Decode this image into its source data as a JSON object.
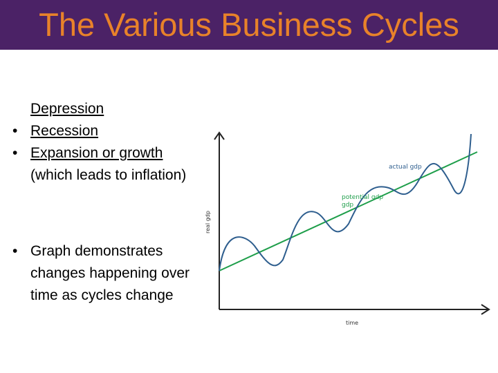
{
  "slide": {
    "title": "The Various Business Cycles",
    "bullets": [
      {
        "text": "Depression",
        "bullet": ""
      },
      {
        "text": "Recession",
        "bullet": "•"
      },
      {
        "text": "Expansion or growth",
        "text_cont": "(which leads to inflation)",
        "bullet": "•"
      },
      {
        "text": "Graph demonstrates changes happening over time as cycles change",
        "bullet": "•"
      }
    ]
  },
  "chart_data": {
    "type": "line",
    "xlabel": "time",
    "ylabel": "real gdp",
    "series": [
      {
        "name": "actual gdp",
        "color": "#2e5e8e"
      },
      {
        "name": "potential gdp",
        "color": "#1e9e4a"
      }
    ],
    "series_label_potential_line2": "gdp",
    "grid": false
  }
}
